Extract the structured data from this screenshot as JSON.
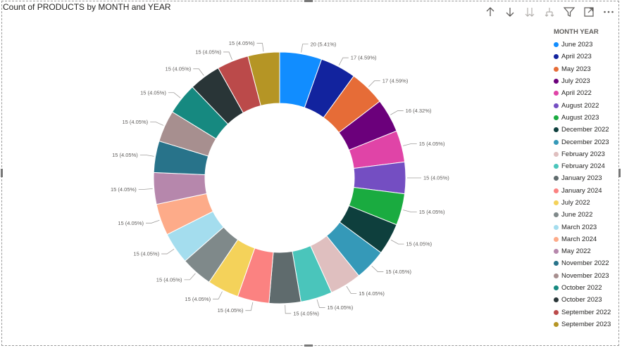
{
  "visual": {
    "title": "Count of PRODUCTS by MONTH and YEAR"
  },
  "toolbar": {
    "icons": [
      "arrow-up-icon",
      "arrow-down-icon",
      "double-arrow-down-icon",
      "fork-down-icon",
      "filter-icon",
      "focus-mode-icon",
      "more-options-icon"
    ]
  },
  "legend": {
    "title": "MONTH YEAR"
  },
  "chart_data": {
    "type": "pie",
    "title": "Count of PRODUCTS by MONTH and YEAR",
    "legend_title": "MONTH YEAR",
    "legend_position": "right",
    "donut": true,
    "slices": [
      {
        "label": "June 2023",
        "value": 20,
        "display": "20 (5.41%)",
        "color": "#118DFF"
      },
      {
        "label": "April 2023",
        "value": 17,
        "display": "17 (4.59%)",
        "color": "#12239E"
      },
      {
        "label": "May 2023",
        "value": 17,
        "display": "17 (4.59%)",
        "color": "#E66C37"
      },
      {
        "label": "July 2023",
        "value": 16,
        "display": "16 (4.32%)",
        "color": "#6B007B"
      },
      {
        "label": "April 2022",
        "value": 15,
        "display": "15 (4.05%)",
        "color": "#E044A7"
      },
      {
        "label": "August 2022",
        "value": 15,
        "display": "15 (4.05%)",
        "color": "#744EC2"
      },
      {
        "label": "August 2023",
        "value": 15,
        "display": "15 (4.05%)",
        "color": "#1AAB40"
      },
      {
        "label": "December 2022",
        "value": 15,
        "display": "15 (4.05%)",
        "color": "#0E3F3D"
      },
      {
        "label": "December 2023",
        "value": 15,
        "display": "15 (4.05%)",
        "color": "#3599B8"
      },
      {
        "label": "February 2023",
        "value": 15,
        "display": "15 (4.05%)",
        "color": "#DFBFBF"
      },
      {
        "label": "February 2024",
        "value": 15,
        "display": "15 (4.05%)",
        "color": "#4AC5BB"
      },
      {
        "label": "January 2023",
        "value": 15,
        "display": "15 (4.05%)",
        "color": "#5F6B6D"
      },
      {
        "label": "January 2024",
        "value": 15,
        "display": "15 (4.05%)",
        "color": "#FB8281"
      },
      {
        "label": "July 2022",
        "value": 15,
        "display": "15 (4.05%)",
        "color": "#F4D25A"
      },
      {
        "label": "June 2022",
        "value": 15,
        "display": "15 (4.05%)",
        "color": "#7F898A"
      },
      {
        "label": "March 2023",
        "value": 15,
        "display": "15 (4.05%)",
        "color": "#A4DDEE"
      },
      {
        "label": "March 2024",
        "value": 15,
        "display": "15 (4.05%)",
        "color": "#FDAB89"
      },
      {
        "label": "May 2022",
        "value": 15,
        "display": "15 (4.05%)",
        "color": "#B687AC"
      },
      {
        "label": "November 2022",
        "value": 15,
        "display": "15 (4.05%)",
        "color": "#28738A"
      },
      {
        "label": "November 2023",
        "value": 15,
        "display": "15 (4.05%)",
        "color": "#A78F8F"
      },
      {
        "label": "October 2022",
        "value": 15,
        "display": "15 (4.05%)",
        "color": "#168980"
      },
      {
        "label": "October 2023",
        "value": 15,
        "display": "15 (4.05%)",
        "color": "#293537"
      },
      {
        "label": "September 2022",
        "value": 15,
        "display": "15 (4.05%)",
        "color": "#BB4A4A"
      },
      {
        "label": "September 2023",
        "value": 15,
        "display": "15 (4.05%)",
        "color": "#B59525"
      }
    ]
  }
}
